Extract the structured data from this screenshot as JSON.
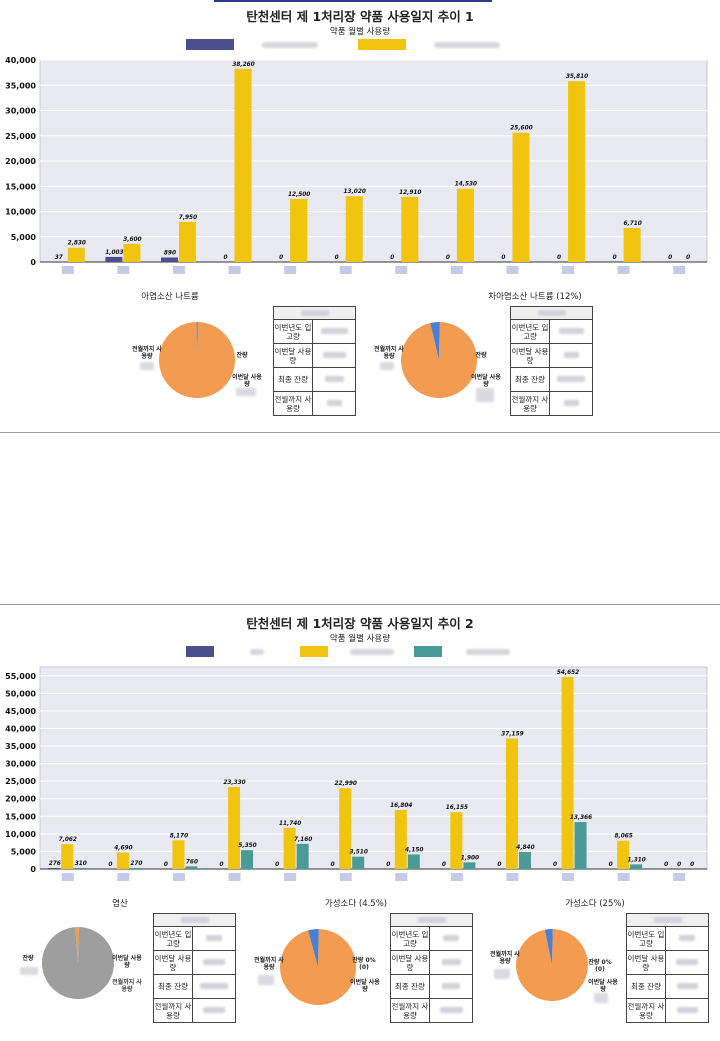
{
  "page": {
    "colors": {
      "series1": "#4b4f8c",
      "series2": "#f1c40f",
      "series3": "#4a9a98",
      "plot_bg": "#e9e9f2",
      "pie_orange": "#f39c51",
      "pie_gray": "#9e9e9e",
      "pie_blue": "#4a7fd4"
    }
  },
  "panel1": {
    "title": "탄천센터 제 1처리장 약품 사용일지 추이 1",
    "subtitle": "약품 월별 사용량",
    "pies": [
      {
        "title": "아염소산 나트륨",
        "labels": {
          "used_to_last": "전월까지 사용량",
          "remaining": "잔량",
          "this_month": "이번달 사용량"
        }
      },
      {
        "title": "차아염소산 나트륨 (12%)",
        "labels": {
          "used_to_last": "전월까지 사용량",
          "remaining": "잔량",
          "this_month": "이번달 사용량"
        }
      }
    ],
    "table_rows": [
      "이번년도 입고량",
      "이번달 사용량",
      "최종 잔량",
      "전월까지 사용량"
    ]
  },
  "panel2": {
    "title": "탄천센터 제 1처리장 약품 사용일지 추이 2",
    "subtitle": "약품 월별 사용량",
    "pies": [
      {
        "title": "염산",
        "labels": {
          "remaining": "잔량",
          "this_month": "이번달 사용량",
          "used_to_last": "전월까지 사용량"
        }
      },
      {
        "title": "가성소다 (4.5%)",
        "labels": {
          "used_to_last": "전월까지 사용량",
          "remaining": "잔량 0% (0)",
          "this_month": "이번달 사용량"
        }
      },
      {
        "title": "가성소다 (25%)",
        "labels": {
          "used_to_last": "전월까지 사용량",
          "remaining": "잔량 0% (0)",
          "this_month": "이번달 사용량"
        }
      }
    ],
    "table_rows": [
      "이번년도 입고량",
      "이번달 사용량",
      "최종 잔량",
      "전월까지 사용량"
    ]
  },
  "chart_data": [
    {
      "type": "bar",
      "title": "탄천센터 제 1처리장 약품 사용일지 추이 1",
      "subtitle": "약품 월별 사용량",
      "ylim": [
        0,
        40000
      ],
      "yticks": [
        "0",
        "5,000",
        "10,000",
        "15,000",
        "20,000",
        "25,000",
        "30,000",
        "35,000",
        "40,000"
      ],
      "categories": [
        "",
        "",
        "",
        "",
        "",
        "",
        "",
        "",
        "",
        "",
        "",
        ""
      ],
      "series": [
        {
          "values": [
            37,
            1003,
            890,
            0,
            0,
            0,
            0,
            0,
            0,
            0,
            0,
            0
          ],
          "labels": [
            "37",
            "1,003",
            "890",
            "0",
            "0",
            "0",
            "0",
            "0",
            "0",
            "0",
            "0",
            "0"
          ]
        },
        {
          "values": [
            2830,
            3600,
            7950,
            38260,
            12500,
            13020,
            12910,
            14530,
            25600,
            35810,
            6710,
            0
          ],
          "labels": [
            "2,830",
            "3,600",
            "7,950",
            "38,260",
            "12,500",
            "13,020",
            "12,910",
            "14,530",
            "25,600",
            "35,810",
            "6,710",
            "0"
          ]
        }
      ],
      "grid": true,
      "legend": "top"
    },
    {
      "type": "bar",
      "title": "탄천센터 제 1처리장 약품 사용일지 추이 2",
      "subtitle": "약품 월별 사용량",
      "ylim": [
        0,
        57500
      ],
      "yticks": [
        "0",
        "5,000",
        "10,000",
        "15,000",
        "20,000",
        "25,000",
        "30,000",
        "35,000",
        "40,000",
        "45,000",
        "50,000",
        "55,000"
      ],
      "categories": [
        "",
        "",
        "",
        "",
        "",
        "",
        "",
        "",
        "",
        "",
        "",
        ""
      ],
      "series": [
        {
          "values": [
            276,
            0,
            0,
            0,
            0,
            0,
            0,
            0,
            0,
            0,
            0,
            0
          ],
          "labels": [
            "276",
            "0",
            "0",
            "0",
            "0",
            "0",
            "0",
            "0",
            "0",
            "0",
            "0",
            "0"
          ]
        },
        {
          "values": [
            7062,
            4690,
            8170,
            23330,
            11740,
            22990,
            16804,
            16155,
            37159,
            54652,
            8065,
            0
          ],
          "labels": [
            "7,062",
            "4,690",
            "8,170",
            "23,330",
            "11,740",
            "22,990",
            "16,804",
            "16,155",
            "37,159",
            "54,652",
            "8,065",
            "0"
          ]
        },
        {
          "values": [
            310,
            270,
            760,
            5350,
            7160,
            3510,
            4150,
            1900,
            4840,
            13366,
            1310,
            0
          ],
          "labels": [
            "310",
            "270",
            "760",
            "5,350",
            "7,160",
            "3,510",
            "4,150",
            "1,900",
            "4,840",
            "13,366",
            "1,310",
            "0"
          ]
        }
      ],
      "grid": true,
      "legend": "top"
    },
    {
      "type": "pie",
      "title": "아염소산 나트륨",
      "slices": [
        {
          "label": "전월까지 사용량",
          "share": 0.995
        },
        {
          "label": "잔량",
          "share": 0.005
        }
      ]
    },
    {
      "type": "pie",
      "title": "차아염소산 나트륨 (12%)",
      "slices": [
        {
          "label": "전월까지 사용량",
          "share": 0.96
        },
        {
          "label": "잔량",
          "share": 0.04
        }
      ]
    },
    {
      "type": "pie",
      "title": "염산",
      "slices": [
        {
          "label": "잔량",
          "share": 0.985
        },
        {
          "label": "이번달 사용량",
          "share": 0.015
        }
      ]
    },
    {
      "type": "pie",
      "title": "가성소다 (4.5%)",
      "slices": [
        {
          "label": "전월까지 사용량",
          "share": 0.955
        },
        {
          "label": "이번달 사용량",
          "share": 0.045
        },
        {
          "label": "잔량 0% (0)",
          "share": 0.0
        }
      ]
    },
    {
      "type": "pie",
      "title": "가성소다 (25%)",
      "slices": [
        {
          "label": "전월까지 사용량",
          "share": 0.965
        },
        {
          "label": "이번달 사용량",
          "share": 0.035
        },
        {
          "label": "잔량 0% (0)",
          "share": 0.0
        }
      ]
    }
  ]
}
